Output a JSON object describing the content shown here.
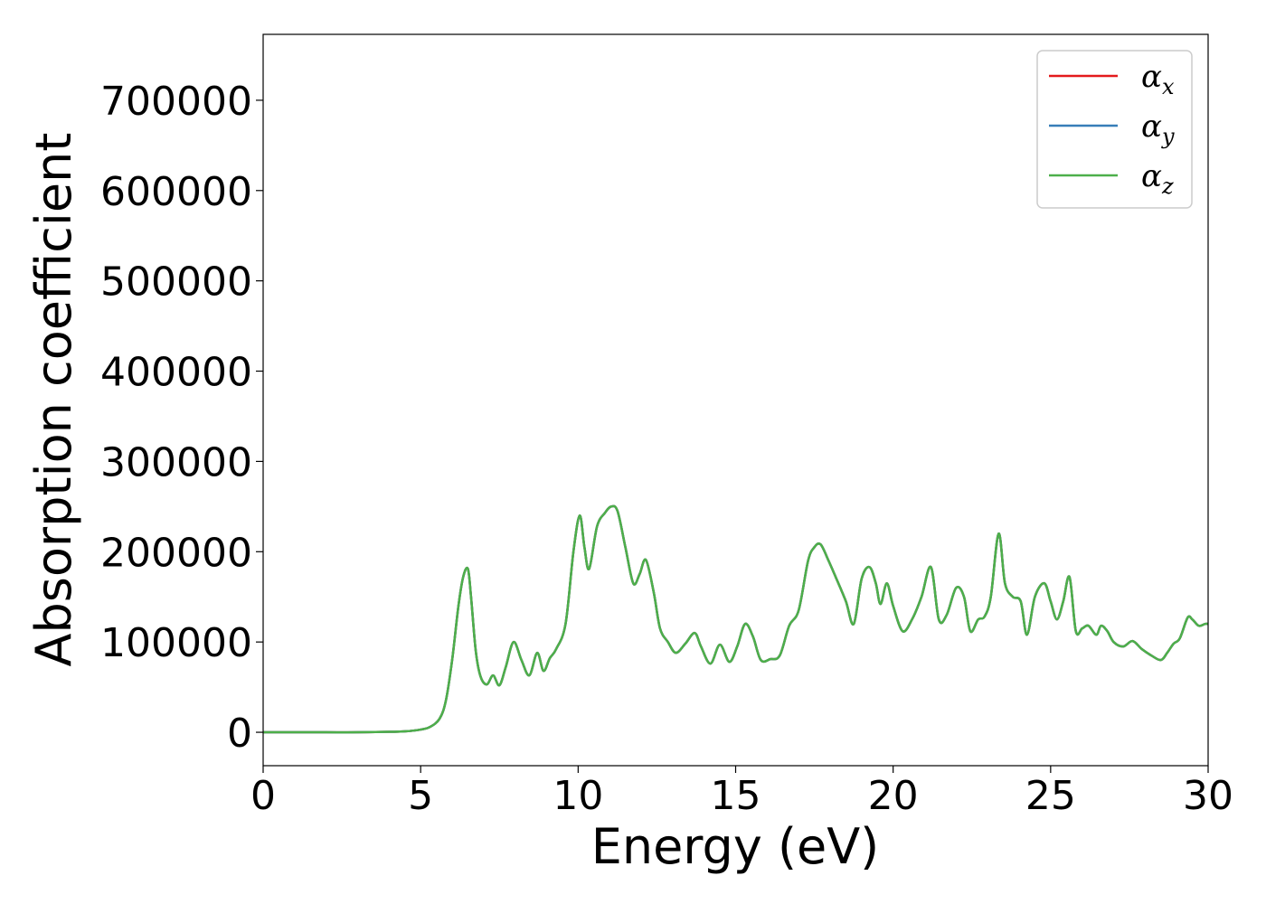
{
  "chart_data": {
    "type": "line",
    "xlabel": "Energy (eV)",
    "ylabel": "Absorption coefficient",
    "xlim": [
      0,
      30
    ],
    "ylim": [
      -37000,
      773000
    ],
    "xticks": [
      0,
      5,
      10,
      15,
      20,
      25,
      30
    ],
    "yticks": [
      0,
      100000,
      200000,
      300000,
      400000,
      500000,
      600000,
      700000
    ],
    "xtick_labels": [
      "0",
      "5",
      "10",
      "15",
      "20",
      "25",
      "30"
    ],
    "ytick_labels": [
      "0",
      "100000",
      "200000",
      "300000",
      "400000",
      "500000",
      "600000",
      "700000"
    ],
    "grid": false,
    "legend_position": "top-right",
    "legend": [
      {
        "symbol": "α",
        "sub": "x",
        "color": "#e41a1c"
      },
      {
        "symbol": "α",
        "sub": "y",
        "color": "#377eb8"
      },
      {
        "symbol": "α",
        "sub": "z",
        "color": "#4daf4a"
      }
    ],
    "series": [
      {
        "name": "αx",
        "color": "#e41a1c",
        "x": [
          0,
          1,
          2,
          3,
          4,
          4.5,
          5,
          5.3,
          5.6,
          5.8,
          6.0,
          6.2,
          6.35,
          6.5,
          6.6,
          6.75,
          6.9,
          7.1,
          7.3,
          7.5,
          7.7,
          7.95,
          8.2,
          8.45,
          8.7,
          8.9,
          9.1,
          9.3,
          9.6,
          9.85,
          10.05,
          10.2,
          10.35,
          10.6,
          10.85,
          11.05,
          11.25,
          11.5,
          11.75,
          11.95,
          12.15,
          12.4,
          12.6,
          12.85,
          13.1,
          13.4,
          13.7,
          13.9,
          14.2,
          14.5,
          14.8,
          15.05,
          15.3,
          15.55,
          15.8,
          16.1,
          16.4,
          16.7,
          17.0,
          17.3,
          17.5,
          17.7,
          17.95,
          18.2,
          18.5,
          18.75,
          19.0,
          19.25,
          19.45,
          19.6,
          19.8,
          20.0,
          20.3,
          20.6,
          20.9,
          21.2,
          21.45,
          21.7,
          22.0,
          22.25,
          22.45,
          22.7,
          22.9,
          23.1,
          23.35,
          23.55,
          23.8,
          24.05,
          24.25,
          24.5,
          24.8,
          25.0,
          25.2,
          25.4,
          25.6,
          25.8,
          26.0,
          26.2,
          26.45,
          26.6,
          26.8,
          27.0,
          27.3,
          27.6,
          27.9,
          28.2,
          28.5,
          28.7,
          28.9,
          29.1,
          29.35,
          29.5,
          29.7,
          29.9,
          30.0
        ],
        "values": [
          0,
          0,
          0,
          0,
          500,
          1000,
          3000,
          6000,
          15000,
          35000,
          80000,
          140000,
          172000,
          181000,
          150000,
          90000,
          62000,
          53000,
          63000,
          52000,
          72000,
          100000,
          80000,
          63000,
          88000,
          68000,
          82000,
          92000,
          120000,
          200000,
          240000,
          205000,
          181000,
          228000,
          243000,
          250000,
          245000,
          205000,
          165000,
          175000,
          191000,
          155000,
          115000,
          100000,
          88000,
          98000,
          110000,
          95000,
          76000,
          97000,
          78000,
          95000,
          120000,
          106000,
          80000,
          81000,
          85000,
          118000,
          135000,
          190000,
          205000,
          208000,
          190000,
          170000,
          145000,
          120000,
          170000,
          183000,
          165000,
          142000,
          165000,
          140000,
          112000,
          125000,
          150000,
          183000,
          125000,
          130000,
          160000,
          150000,
          112000,
          125000,
          128000,
          150000,
          220000,
          165000,
          150000,
          145000,
          108000,
          150000,
          165000,
          145000,
          125000,
          145000,
          172000,
          112000,
          115000,
          118000,
          108000,
          118000,
          112000,
          100000,
          95000,
          101000,
          92000,
          85000,
          80000,
          88000,
          98000,
          104000,
          127000,
          125000,
          118000,
          120000,
          120000
        ]
      },
      {
        "name": "αy",
        "color": "#377eb8",
        "x": [
          0,
          1,
          2,
          3,
          4,
          4.5,
          5,
          5.3,
          5.6,
          5.8,
          6.0,
          6.2,
          6.35,
          6.5,
          6.6,
          6.75,
          6.9,
          7.1,
          7.3,
          7.5,
          7.7,
          7.95,
          8.2,
          8.45,
          8.7,
          8.9,
          9.1,
          9.3,
          9.6,
          9.85,
          10.05,
          10.2,
          10.35,
          10.6,
          10.85,
          11.05,
          11.25,
          11.5,
          11.75,
          11.95,
          12.15,
          12.4,
          12.6,
          12.85,
          13.1,
          13.4,
          13.7,
          13.9,
          14.2,
          14.5,
          14.8,
          15.05,
          15.3,
          15.55,
          15.8,
          16.1,
          16.4,
          16.7,
          17.0,
          17.3,
          17.5,
          17.7,
          17.95,
          18.2,
          18.5,
          18.75,
          19.0,
          19.25,
          19.45,
          19.6,
          19.8,
          20.0,
          20.3,
          20.6,
          20.9,
          21.2,
          21.45,
          21.7,
          22.0,
          22.25,
          22.45,
          22.7,
          22.9,
          23.1,
          23.35,
          23.55,
          23.8,
          24.05,
          24.25,
          24.5,
          24.8,
          25.0,
          25.2,
          25.4,
          25.6,
          25.8,
          26.0,
          26.2,
          26.45,
          26.6,
          26.8,
          27.0,
          27.3,
          27.6,
          27.9,
          28.2,
          28.5,
          28.7,
          28.9,
          29.1,
          29.35,
          29.5,
          29.7,
          29.9,
          30.0
        ],
        "values": [
          0,
          0,
          0,
          0,
          500,
          1000,
          3000,
          6000,
          15000,
          35000,
          80000,
          140000,
          172000,
          181000,
          150000,
          90000,
          62000,
          53000,
          63000,
          52000,
          72000,
          100000,
          80000,
          63000,
          88000,
          68000,
          82000,
          92000,
          120000,
          200000,
          240000,
          205000,
          181000,
          228000,
          243000,
          250000,
          245000,
          205000,
          165000,
          175000,
          191000,
          155000,
          115000,
          100000,
          88000,
          98000,
          110000,
          95000,
          76000,
          97000,
          78000,
          95000,
          120000,
          106000,
          80000,
          81000,
          85000,
          118000,
          135000,
          190000,
          205000,
          208000,
          190000,
          170000,
          145000,
          120000,
          170000,
          183000,
          165000,
          142000,
          165000,
          140000,
          112000,
          125000,
          150000,
          183000,
          125000,
          130000,
          160000,
          150000,
          112000,
          125000,
          128000,
          150000,
          220000,
          165000,
          150000,
          145000,
          108000,
          150000,
          165000,
          145000,
          125000,
          145000,
          172000,
          112000,
          115000,
          118000,
          108000,
          118000,
          112000,
          100000,
          95000,
          101000,
          92000,
          85000,
          80000,
          88000,
          98000,
          104000,
          127000,
          125000,
          118000,
          120000,
          120000
        ]
      },
      {
        "name": "αz",
        "color": "#4daf4a",
        "x": [
          0,
          1,
          2,
          3,
          4,
          4.5,
          5,
          5.3,
          5.6,
          5.8,
          6.0,
          6.2,
          6.35,
          6.5,
          6.6,
          6.75,
          6.9,
          7.1,
          7.3,
          7.5,
          7.7,
          7.95,
          8.2,
          8.45,
          8.7,
          8.9,
          9.1,
          9.3,
          9.6,
          9.85,
          10.05,
          10.2,
          10.35,
          10.6,
          10.85,
          11.05,
          11.25,
          11.5,
          11.75,
          11.95,
          12.15,
          12.4,
          12.6,
          12.85,
          13.1,
          13.4,
          13.7,
          13.9,
          14.2,
          14.5,
          14.8,
          15.05,
          15.3,
          15.55,
          15.8,
          16.1,
          16.4,
          16.7,
          17.0,
          17.3,
          17.5,
          17.7,
          17.95,
          18.2,
          18.5,
          18.75,
          19.0,
          19.25,
          19.45,
          19.6,
          19.8,
          20.0,
          20.3,
          20.6,
          20.9,
          21.2,
          21.45,
          21.7,
          22.0,
          22.25,
          22.45,
          22.7,
          22.9,
          23.1,
          23.35,
          23.55,
          23.8,
          24.05,
          24.25,
          24.5,
          24.8,
          25.0,
          25.2,
          25.4,
          25.6,
          25.8,
          26.0,
          26.2,
          26.45,
          26.6,
          26.8,
          27.0,
          27.3,
          27.6,
          27.9,
          28.2,
          28.5,
          28.7,
          28.9,
          29.1,
          29.35,
          29.5,
          29.7,
          29.9,
          30.0
        ],
        "values": [
          0,
          0,
          0,
          0,
          500,
          1000,
          3000,
          6000,
          15000,
          35000,
          80000,
          140000,
          172000,
          181000,
          150000,
          90000,
          62000,
          53000,
          63000,
          52000,
          72000,
          100000,
          80000,
          63000,
          88000,
          68000,
          82000,
          92000,
          120000,
          200000,
          240000,
          205000,
          181000,
          228000,
          243000,
          250000,
          245000,
          205000,
          165000,
          175000,
          191000,
          155000,
          115000,
          100000,
          88000,
          98000,
          110000,
          95000,
          76000,
          97000,
          78000,
          95000,
          120000,
          106000,
          80000,
          81000,
          85000,
          118000,
          135000,
          190000,
          205000,
          208000,
          190000,
          170000,
          145000,
          120000,
          170000,
          183000,
          165000,
          142000,
          165000,
          140000,
          112000,
          125000,
          150000,
          183000,
          125000,
          130000,
          160000,
          150000,
          112000,
          125000,
          128000,
          150000,
          220000,
          165000,
          150000,
          145000,
          108000,
          150000,
          165000,
          145000,
          125000,
          145000,
          172000,
          112000,
          115000,
          118000,
          108000,
          118000,
          112000,
          100000,
          95000,
          101000,
          92000,
          85000,
          80000,
          88000,
          98000,
          104000,
          127000,
          125000,
          118000,
          120000,
          120000
        ]
      }
    ]
  }
}
